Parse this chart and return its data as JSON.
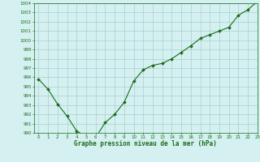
{
  "x": [
    0,
    1,
    2,
    3,
    4,
    5,
    6,
    7,
    8,
    9,
    10,
    11,
    12,
    13,
    14,
    15,
    16,
    17,
    18,
    19,
    20,
    21,
    22,
    23
  ],
  "y": [
    995.8,
    994.7,
    993.1,
    991.8,
    990.2,
    989.6,
    989.5,
    991.1,
    992.0,
    993.3,
    995.6,
    996.8,
    997.3,
    997.5,
    998.0,
    998.7,
    999.4,
    1000.2,
    1000.6,
    1001.0,
    1001.4,
    1002.7,
    1003.3,
    1004.2
  ],
  "line_color": "#1a6b1a",
  "marker_color": "#1a6b1a",
  "bg_color": "#d4f0f0",
  "grid_color": "#a0c8c8",
  "axis_color": "#1a6b1a",
  "xlabel": "Graphe pression niveau de la mer (hPa)",
  "ylim_min": 990,
  "ylim_max": 1004,
  "xlim_min": -0.5,
  "xlim_max": 23,
  "ytick_min": 990,
  "ytick_max": 1004
}
